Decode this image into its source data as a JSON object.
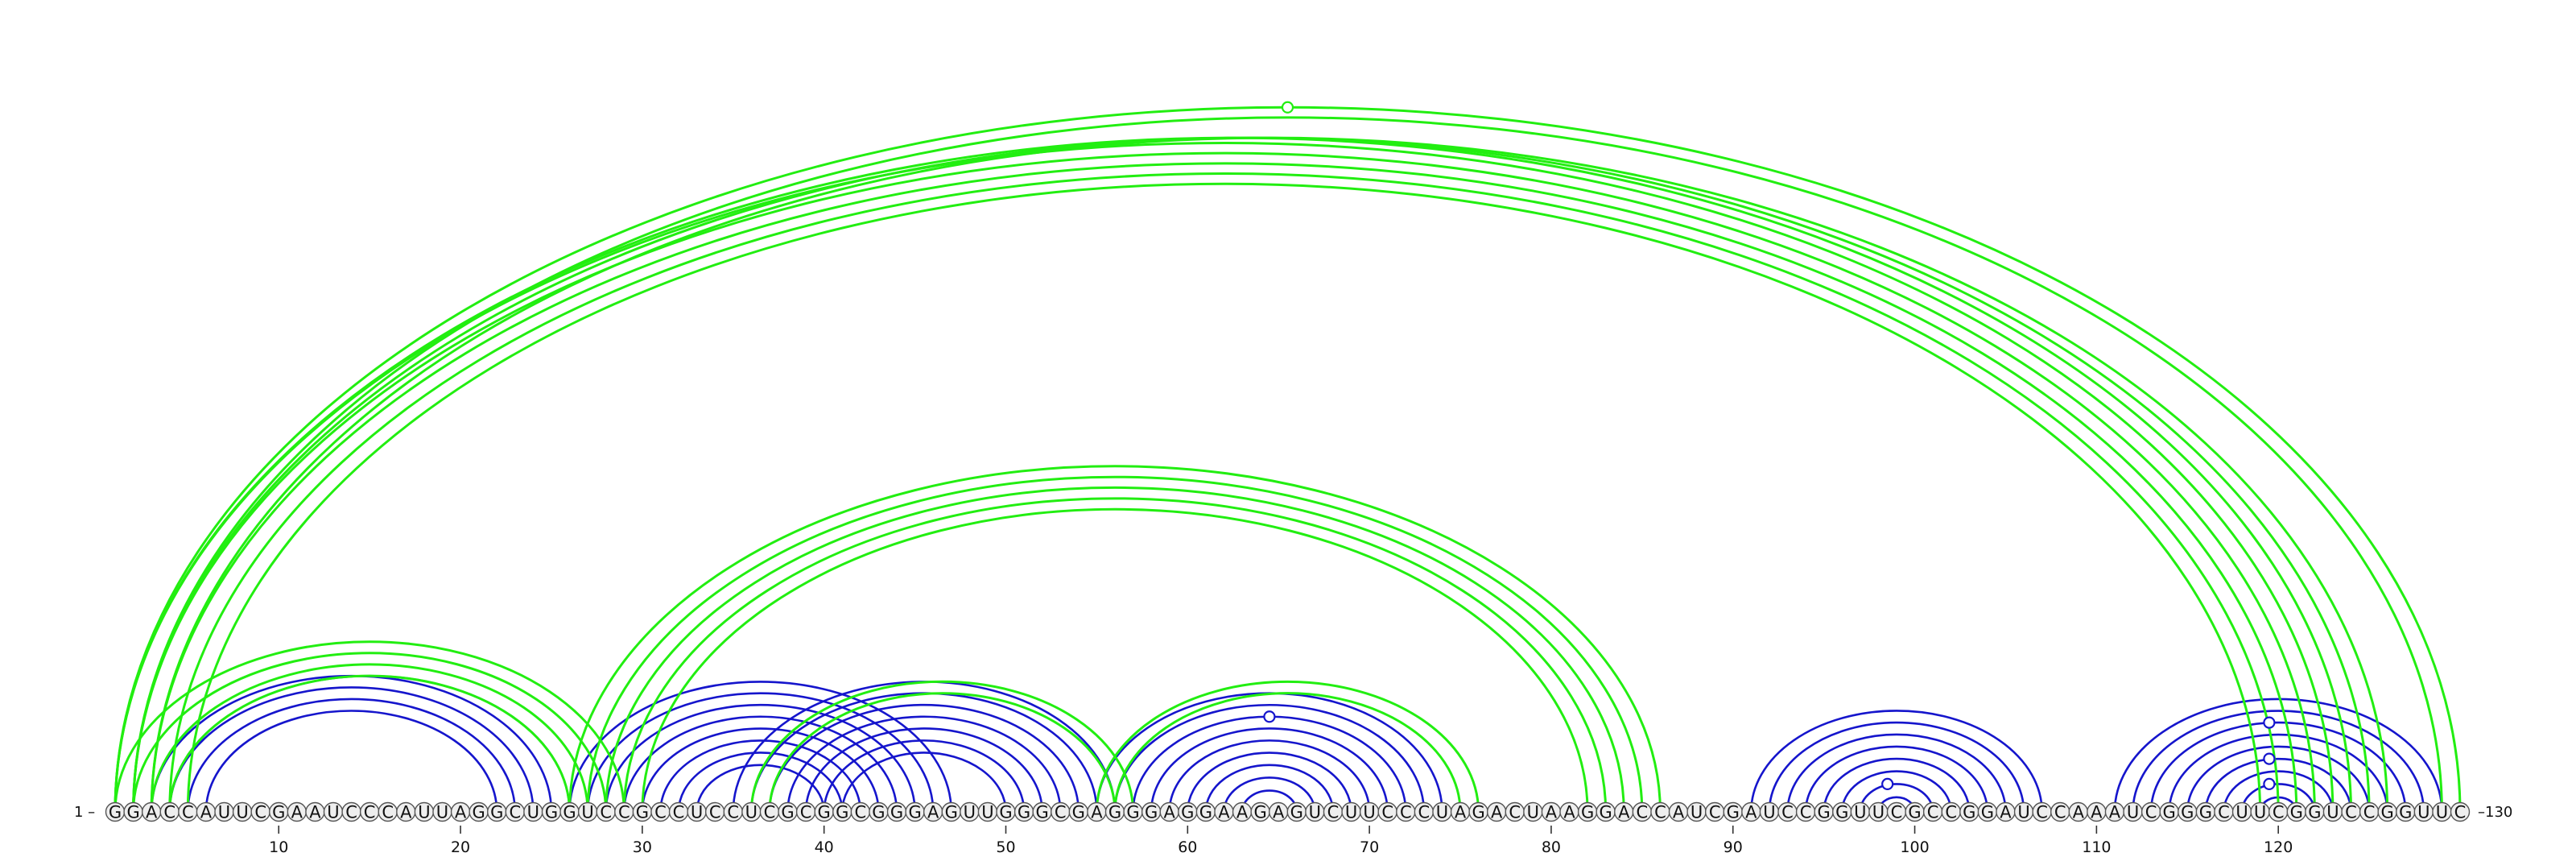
{
  "sequence": "GGACCAUUCGAAUCCCAUUAGGCUGGUCCGCCUCCUCGCGGCGGGAGUUGGGCGAGGGAGGAAGAGUCUUCCCUAGACUAAGGACCAUCGAUCCGGUUCGCCGGAUCCAAAUCGGGCUUCGGUCCGGUUC",
  "start_label": "1 –",
  "end_label": "–130",
  "ticks": [
    10,
    20,
    30,
    40,
    50,
    60,
    70,
    80,
    90,
    100,
    110,
    120
  ],
  "colors": {
    "blue_arcs": "#1515cc",
    "green_arcs": "#22ee11",
    "nucleotide_fill": "#eeeeee",
    "nucleotide_stroke": "#555555"
  },
  "arc_groups": [
    {
      "color": "blue",
      "pairs": [
        [
          4,
          24
        ],
        [
          5,
          23
        ],
        [
          6,
          22
        ],
        [
          3,
          25
        ],
        [
          4,
          26
        ]
      ]
    },
    {
      "color": "blue",
      "pairs": [
        [
          28,
          45
        ],
        [
          29,
          44
        ],
        [
          30,
          43
        ],
        [
          31,
          42
        ],
        [
          32,
          41
        ],
        [
          33,
          40
        ],
        [
          27,
          46
        ],
        [
          26,
          47
        ]
      ]
    },
    {
      "color": "blue",
      "pairs": [
        [
          36,
          55
        ],
        [
          37,
          54
        ],
        [
          38,
          53
        ],
        [
          39,
          52
        ],
        [
          40,
          51
        ],
        [
          41,
          50
        ],
        [
          35,
          56
        ]
      ]
    },
    {
      "color": "blue",
      "pairs": [
        [
          56,
          73
        ],
        [
          57,
          72
        ],
        [
          58,
          71
        ],
        [
          59,
          70
        ],
        [
          60,
          69
        ],
        [
          61,
          68
        ],
        [
          62,
          67
        ],
        [
          63,
          66
        ],
        [
          55,
          74
        ]
      ]
    },
    {
      "color": "blue",
      "pairs": [
        [
          91,
          107
        ],
        [
          92,
          106
        ],
        [
          93,
          105
        ],
        [
          94,
          104
        ],
        [
          95,
          103
        ],
        [
          96,
          102
        ],
        [
          97,
          101
        ],
        [
          98,
          100
        ],
        [
          99,
          99
        ]
      ]
    },
    {
      "color": "blue",
      "pairs": [
        [
          111,
          129
        ],
        [
          112,
          128
        ],
        [
          113,
          127
        ],
        [
          114,
          126
        ],
        [
          115,
          125
        ],
        [
          116,
          124
        ],
        [
          117,
          123
        ],
        [
          118,
          122
        ],
        [
          119,
          121
        ]
      ]
    },
    {
      "color": "green",
      "pairs": [
        [
          1,
          123
        ],
        [
          2,
          122
        ],
        [
          3,
          121
        ],
        [
          4,
          120
        ],
        [
          5,
          119
        ],
        [
          1,
          124
        ],
        [
          2,
          125
        ],
        [
          3,
          126
        ]
      ]
    },
    {
      "color": "green",
      "pairs": [
        [
          1,
          130
        ],
        [
          2,
          129
        ]
      ]
    },
    {
      "color": "green",
      "pairs": [
        [
          26,
          86
        ],
        [
          27,
          85
        ],
        [
          28,
          84
        ],
        [
          29,
          83
        ],
        [
          30,
          82
        ]
      ]
    },
    {
      "color": "green",
      "pairs": [
        [
          1,
          29
        ],
        [
          2,
          28
        ],
        [
          3,
          27
        ],
        [
          4,
          26
        ]
      ]
    },
    {
      "color": "green",
      "pairs": [
        [
          36,
          57
        ],
        [
          37,
          56
        ]
      ]
    },
    {
      "color": "green",
      "pairs": [
        [
          56,
          75
        ],
        [
          55,
          76
        ]
      ]
    }
  ],
  "markers": [
    {
      "position": 65.5,
      "height_of_pair": [
        1,
        130
      ],
      "color": "green"
    },
    {
      "position": 64.5,
      "height_of_pair": [
        57,
        72
      ],
      "color": "blue"
    },
    {
      "position": 98.5,
      "height_of_pair": [
        97,
        101
      ],
      "color": "blue"
    },
    {
      "position": 119.5,
      "height_of_pair": [
        113,
        127
      ],
      "color": "blue"
    },
    {
      "position": 119.5,
      "height_of_pair": [
        116,
        124
      ],
      "color": "blue"
    },
    {
      "position": 119.5,
      "height_of_pair": [
        118,
        122
      ],
      "color": "blue"
    }
  ]
}
